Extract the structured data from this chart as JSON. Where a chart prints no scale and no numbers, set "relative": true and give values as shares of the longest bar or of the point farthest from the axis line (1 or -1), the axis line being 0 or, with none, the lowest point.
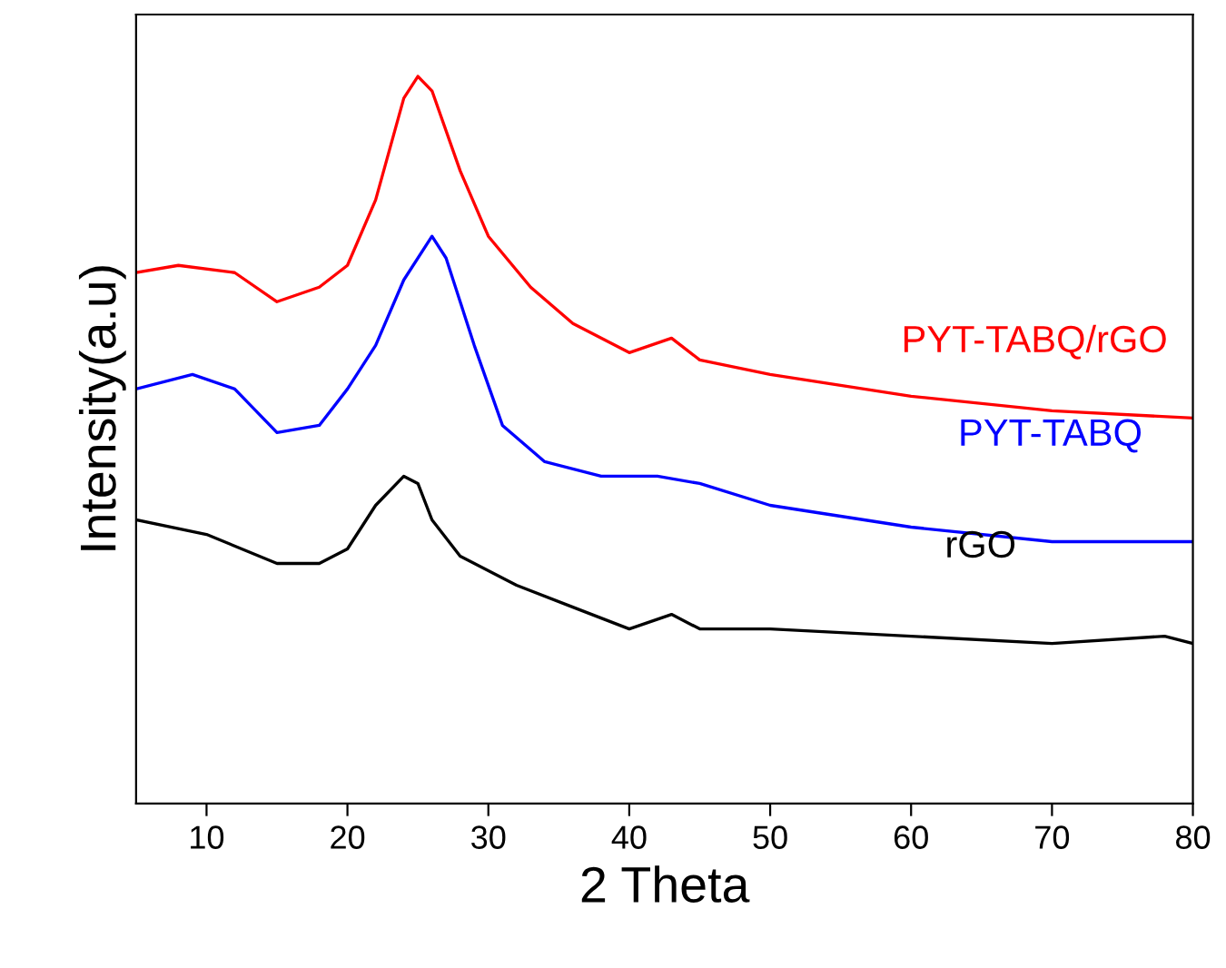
{
  "chart_data": {
    "type": "line",
    "relative": true,
    "xlabel": "2 Theta",
    "ylabel": "Intensity(a.u)",
    "xlim": [
      5,
      80
    ],
    "xticks": [
      10,
      20,
      30,
      40,
      50,
      60,
      70,
      80
    ],
    "tick_labels": "x",
    "grid": false,
    "legend": false,
    "series": [
      {
        "name": "PYT-TABQ/rGO",
        "color": "#ff0000",
        "x": [
          5,
          8,
          12,
          15,
          18,
          20,
          22,
          24,
          25,
          26,
          28,
          30,
          33,
          36,
          40,
          43,
          45,
          50,
          60,
          70,
          80
        ],
        "values": [
          0.73,
          0.74,
          0.73,
          0.69,
          0.71,
          0.74,
          0.83,
          0.97,
          1.0,
          0.98,
          0.87,
          0.78,
          0.71,
          0.66,
          0.62,
          0.64,
          0.61,
          0.59,
          0.56,
          0.54,
          0.53
        ]
      },
      {
        "name": "PYT-TABQ",
        "color": "#0000ff",
        "x": [
          5,
          9,
          12,
          15,
          18,
          20,
          22,
          24,
          26,
          27,
          29,
          31,
          34,
          38,
          42,
          45,
          50,
          60,
          70,
          80
        ],
        "values": [
          0.57,
          0.59,
          0.57,
          0.51,
          0.52,
          0.57,
          0.63,
          0.72,
          0.78,
          0.75,
          0.63,
          0.52,
          0.47,
          0.45,
          0.45,
          0.44,
          0.41,
          0.38,
          0.36,
          0.36
        ]
      },
      {
        "name": "rGO",
        "color": "#000000",
        "x": [
          5,
          10,
          15,
          18,
          20,
          22,
          24,
          25,
          26,
          28,
          32,
          36,
          40,
          43,
          45,
          50,
          60,
          70,
          78,
          80
        ],
        "values": [
          0.39,
          0.37,
          0.33,
          0.33,
          0.35,
          0.41,
          0.45,
          0.44,
          0.39,
          0.34,
          0.3,
          0.27,
          0.24,
          0.26,
          0.24,
          0.24,
          0.23,
          0.22,
          0.23,
          0.22
        ]
      }
    ]
  }
}
